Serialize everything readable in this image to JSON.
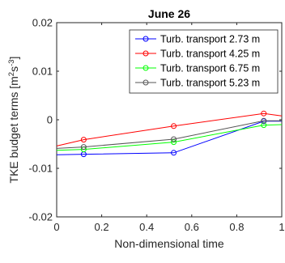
{
  "chart_data": {
    "type": "line",
    "title": "June 26",
    "xlabel": "Non-dimensional time",
    "ylabel": "TKE budget terms [m",
    "ylabel_sup1": "2",
    "ylabel_mid": "s",
    "ylabel_sup2": "-3",
    "ylabel_end": "]",
    "xlim": [
      0,
      1
    ],
    "ylim": [
      -0.02,
      0.02
    ],
    "xticks": [
      0,
      0.2,
      0.4,
      0.6,
      0.8,
      1
    ],
    "xtick_labels": [
      "0",
      "0.2",
      "0.4",
      "0.6",
      "0.8",
      "1"
    ],
    "yticks": [
      -0.02,
      -0.01,
      0,
      0.01,
      0.02
    ],
    "ytick_labels": [
      "-0.02",
      "-0.01",
      "0",
      "0.01",
      "0.02"
    ],
    "grid": false,
    "legend_position": "top-right",
    "x": [
      0,
      0.12,
      0.52,
      0.92,
      1
    ],
    "series": [
      {
        "name": "Turb. transport 2.73 m",
        "color": "#0000ff",
        "x": [
          0,
          0.12,
          0.52,
          0.92,
          1
        ],
        "values": [
          -0.0072,
          -0.0071,
          -0.0068,
          -0.0003,
          -0.0003
        ],
        "markers": [
          false,
          true,
          true,
          true,
          false
        ]
      },
      {
        "name": "Turb. transport 4.25 m",
        "color": "#ff0000",
        "x": [
          0,
          0.12,
          0.52,
          0.92,
          1
        ],
        "values": [
          -0.0054,
          -0.0041,
          -0.0013,
          0.0013,
          0.0008
        ],
        "markers": [
          false,
          true,
          true,
          true,
          false
        ]
      },
      {
        "name": "Turb. transport 6.75 m",
        "color": "#00ff00",
        "x": [
          0,
          0.12,
          0.52,
          0.92,
          1
        ],
        "values": [
          -0.0063,
          -0.0061,
          -0.0046,
          -0.0011,
          -0.001
        ],
        "markers": [
          false,
          true,
          true,
          true,
          false
        ]
      },
      {
        "name": "Turb. transport 5.23 m",
        "color": "#555555",
        "x": [
          0,
          0.12,
          0.52,
          0.92,
          1
        ],
        "values": [
          -0.0059,
          -0.0056,
          -0.004,
          -0.0002,
          -0.0002
        ],
        "markers": [
          false,
          true,
          true,
          true,
          false
        ]
      }
    ]
  }
}
